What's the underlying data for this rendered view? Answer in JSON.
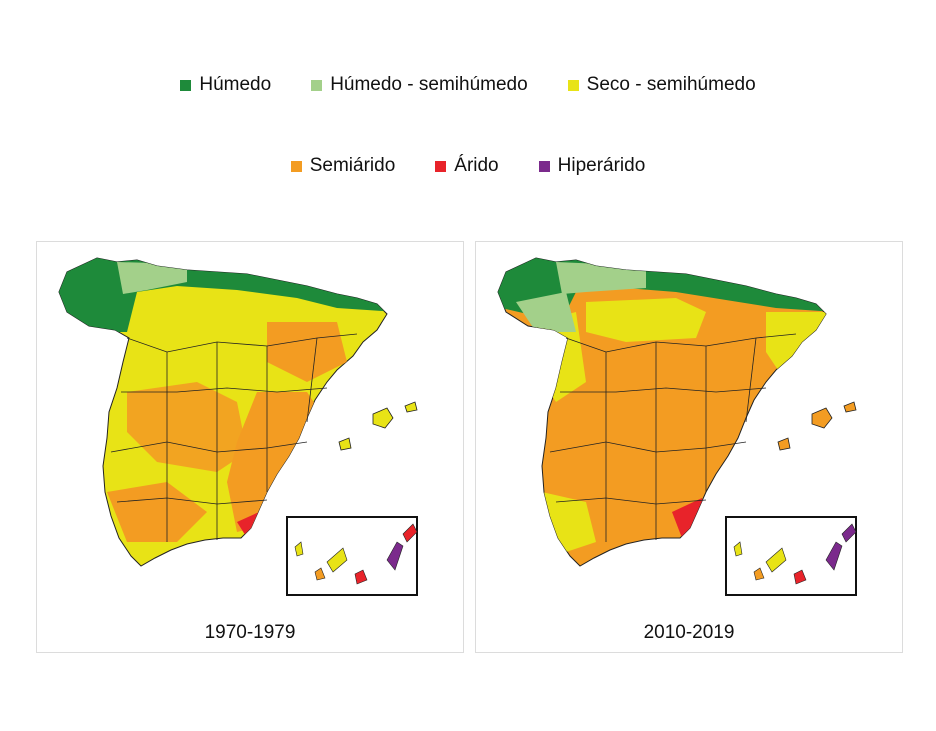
{
  "legend": {
    "items": [
      {
        "label": "Húmedo",
        "color": "#1e8a3a"
      },
      {
        "label": "Húmedo - semihúmedo",
        "color": "#a3d08a"
      },
      {
        "label": "Seco - semihúmedo",
        "color": "#e8e316"
      },
      {
        "label": "Semiárido",
        "color": "#f39c22"
      },
      {
        "label": "Árido",
        "color": "#e8232a"
      },
      {
        "label": "Hiperárido",
        "color": "#7b2a8c"
      }
    ]
  },
  "maps": [
    {
      "caption": "1970-1979"
    },
    {
      "caption": "2010-2019"
    }
  ]
}
